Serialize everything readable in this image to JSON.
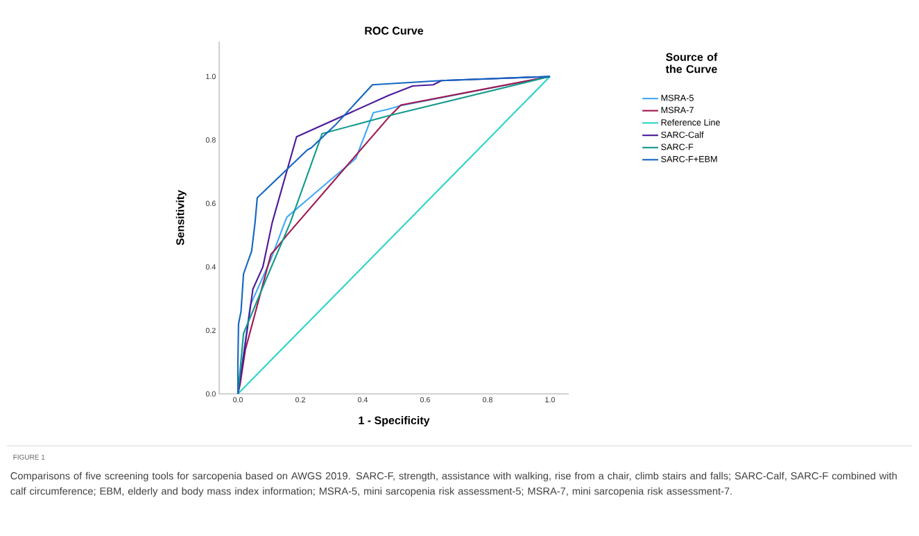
{
  "chart_data": {
    "type": "line",
    "title": "ROC Curve",
    "xlabel": "1 - Specificity",
    "ylabel": "Sensitivity",
    "legend_title": "Source of the Curve",
    "xlim": [
      -0.06,
      1.06
    ],
    "ylim": [
      0,
      1.11
    ],
    "xticks": [
      {
        "value": 0,
        "label": "0.0"
      },
      {
        "value": 0.2,
        "label": "0.2"
      },
      {
        "value": 0.4,
        "label": "0.4"
      },
      {
        "value": 0.6,
        "label": "0.6"
      },
      {
        "value": 0.8,
        "label": "0.8"
      },
      {
        "value": 1,
        "label": "1.0"
      }
    ],
    "yticks": [
      {
        "value": 0,
        "label": "0.0"
      },
      {
        "value": 0.2,
        "label": "0.2"
      },
      {
        "value": 0.4,
        "label": "0.4"
      },
      {
        "value": 0.6,
        "label": "0.6"
      },
      {
        "value": 0.8,
        "label": "0.8"
      },
      {
        "value": 1,
        "label": "1.0"
      }
    ],
    "grid": false,
    "legend": "right",
    "marker": "none",
    "line_style": "solid",
    "series": [
      {
        "name": "MSRA-5",
        "color": "#3fa9f5",
        "x": [
          0,
          0.013,
          0.04,
          0.106,
          0.15,
          0.157,
          0.268,
          0.378,
          0.434,
          0.482,
          0.52,
          1
        ],
        "values": [
          0,
          0.09,
          0.28,
          0.425,
          0.54,
          0.557,
          0.65,
          0.742,
          0.886,
          0.897,
          0.908,
          1
        ]
      },
      {
        "name": "MSRA-7",
        "color": "#a0174f",
        "x": [
          0,
          0.007,
          0.024,
          0.106,
          0.12,
          0.157,
          0.482,
          0.522,
          1
        ],
        "values": [
          0,
          0.03,
          0.14,
          0.44,
          0.455,
          0.5,
          0.87,
          0.91,
          1
        ]
      },
      {
        "name": "Reference Line",
        "color": "#2ad4c8",
        "x": [
          0,
          1
        ],
        "values": [
          0,
          1
        ]
      },
      {
        "name": "SARC-Calf",
        "color": "#4b1a9a",
        "x": [
          0,
          0.007,
          0.048,
          0.08,
          0.11,
          0.188,
          0.482,
          0.56,
          0.626,
          0.652,
          1
        ],
        "values": [
          0,
          0.04,
          0.33,
          0.4,
          0.54,
          0.81,
          0.94,
          0.97,
          0.974,
          0.987,
          1
        ]
      },
      {
        "name": "SARC-F",
        "color": "#129a8c",
        "x": [
          0,
          0.018,
          0.02,
          0.09,
          0.168,
          0.27,
          0.482,
          1
        ],
        "values": [
          0,
          0.19,
          0.195,
          0.36,
          0.54,
          0.82,
          0.876,
          1
        ]
      },
      {
        "name": "SARC-F+EBM",
        "color": "#1466c2",
        "x": [
          0,
          0,
          0.002,
          0.01,
          0.018,
          0.044,
          0.055,
          0.062,
          0.223,
          0.235,
          0.312,
          0.431,
          0.65,
          1
        ],
        "values": [
          0,
          0.1,
          0.22,
          0.26,
          0.378,
          0.45,
          0.54,
          0.618,
          0.769,
          0.775,
          0.847,
          0.974,
          0.987,
          1
        ]
      }
    ],
    "annotations": [
      "FIGURE 1",
      "Comparisons of five screening tools for sarcopenia based on AWGS 2019. SARC-F, strength, assistance with walking, rise from a chair, climb stairs and falls; SARC-Calf, SARC-F combined with calf circumference; EBM, elderly and body mass index information; MSRA-5, mini sarcopenia risk assessment-5; MSRA-7, mini sarcopenia risk assessment-7."
    ]
  }
}
